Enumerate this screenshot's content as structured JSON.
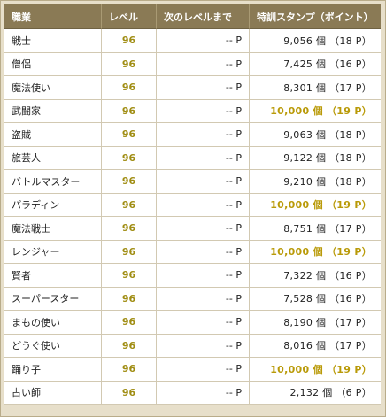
{
  "headers": {
    "job": "職業",
    "level": "レベル",
    "next": "次のレベルまで",
    "stamp": "特訓スタンプ（ポイント）"
  },
  "rows": [
    {
      "job": "戦士",
      "level": "96",
      "next": "-- P",
      "stamp": "9,056 個 （18 P）",
      "max": false
    },
    {
      "job": "僧侶",
      "level": "96",
      "next": "-- P",
      "stamp": "7,425 個 （16 P）",
      "max": false
    },
    {
      "job": "魔法使い",
      "level": "96",
      "next": "-- P",
      "stamp": "8,301 個 （17 P）",
      "max": false
    },
    {
      "job": "武闘家",
      "level": "96",
      "next": "-- P",
      "stamp": "10,000 個 （19 P）",
      "max": true
    },
    {
      "job": "盗賊",
      "level": "96",
      "next": "-- P",
      "stamp": "9,063 個 （18 P）",
      "max": false
    },
    {
      "job": "旅芸人",
      "level": "96",
      "next": "-- P",
      "stamp": "9,122 個 （18 P）",
      "max": false
    },
    {
      "job": "バトルマスター",
      "level": "96",
      "next": "-- P",
      "stamp": "9,210 個 （18 P）",
      "max": false
    },
    {
      "job": "パラディン",
      "level": "96",
      "next": "-- P",
      "stamp": "10,000 個 （19 P）",
      "max": true
    },
    {
      "job": "魔法戦士",
      "level": "96",
      "next": "-- P",
      "stamp": "8,751 個 （17 P）",
      "max": false
    },
    {
      "job": "レンジャー",
      "level": "96",
      "next": "-- P",
      "stamp": "10,000 個 （19 P）",
      "max": true
    },
    {
      "job": "賢者",
      "level": "96",
      "next": "-- P",
      "stamp": "7,322 個 （16 P）",
      "max": false
    },
    {
      "job": "スーパースター",
      "level": "96",
      "next": "-- P",
      "stamp": "7,528 個 （16 P）",
      "max": false
    },
    {
      "job": "まもの使い",
      "level": "96",
      "next": "-- P",
      "stamp": "8,190 個 （17 P）",
      "max": false
    },
    {
      "job": "どうぐ使い",
      "level": "96",
      "next": "-- P",
      "stamp": "8,016 個 （17 P）",
      "max": false
    },
    {
      "job": "踊り子",
      "level": "96",
      "next": "-- P",
      "stamp": "10,000 個 （19 P）",
      "max": true
    },
    {
      "job": "占い師",
      "level": "96",
      "next": "-- P",
      "stamp": "2,132 個 （6 P）",
      "max": false
    }
  ],
  "colors": {
    "header_bg": "#8a7a55",
    "level_text": "#a08d13",
    "max_stamp_text": "#b99a08",
    "frame_bg": "#e7dfca"
  }
}
